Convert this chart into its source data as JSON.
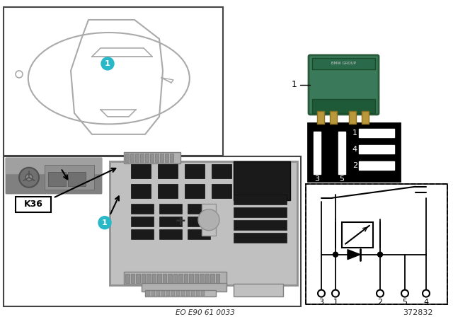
{
  "bg_color": "#ffffff",
  "fig_width": 6.4,
  "fig_height": 4.48,
  "bottom_left_text": "EO E90 61 0033",
  "bottom_right_text": "372832",
  "k36_label": "K36",
  "teal_color": "#29B8C8",
  "car_line_color": "#aaaaaa",
  "relay_green_color": "#3a7a5a",
  "relay_dark_green": "#2a5a3a",
  "relay_pin_color": "#c8a870"
}
